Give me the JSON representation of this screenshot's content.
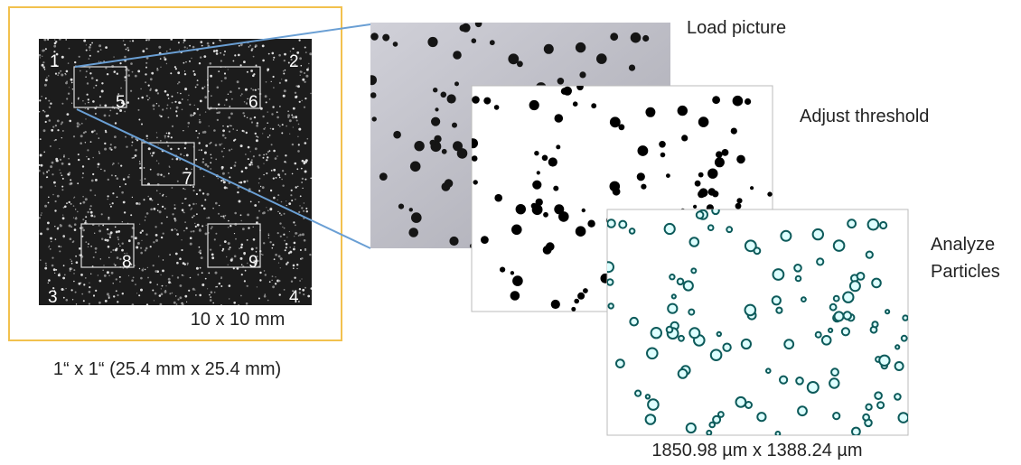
{
  "overview": {
    "corner_labels": [
      "1",
      "2",
      "3",
      "4"
    ],
    "region_labels": [
      "5",
      "6",
      "7",
      "8",
      "9"
    ],
    "inner_size": "10 x 10 mm",
    "outer_size": "1“ x 1“ (25.4 mm x 25.4 mm)"
  },
  "steps": [
    {
      "lines": [
        "Load picture"
      ]
    },
    {
      "lines": [
        "Adjust threshold"
      ]
    },
    {
      "lines": [
        "Analyze",
        "Particles"
      ]
    }
  ],
  "image_size": "1850.98 µm x 1388.24 µm"
}
